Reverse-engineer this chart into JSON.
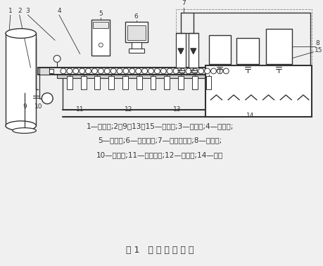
{
  "title": "图 1   水 表 装 置 结 构",
  "legend_line1": "1—稳压罐;2、9、13、15—开关阀;3—压力表;4—摄像头;",
  "legend_line2": "5—控制柜;6—操作电脑;7—浮子流量计;8—标准罐;",
  "legend_line3": "10—抜水泵;11—被检水表;12—操作台;14—水池",
  "bg": "#f0f0f0",
  "lc": "#333333"
}
